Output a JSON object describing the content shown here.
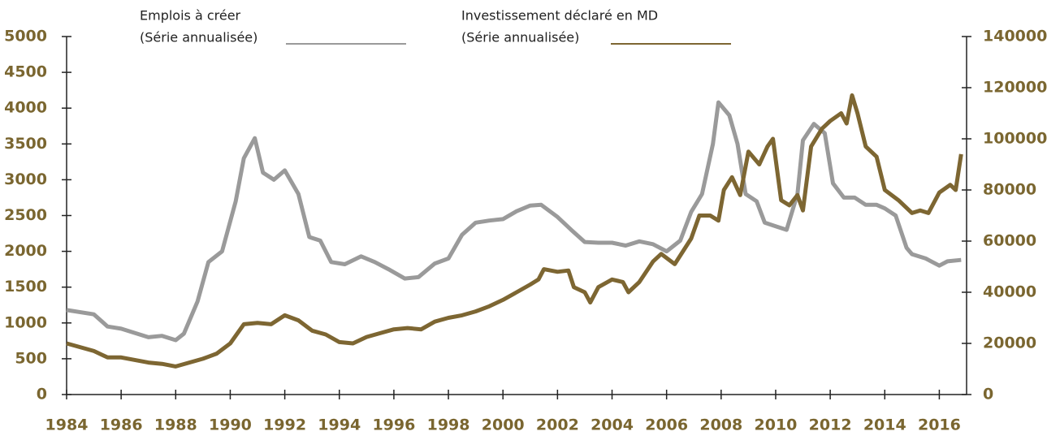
{
  "chart_data": {
    "type": "line",
    "xlim": [
      1984,
      2017
    ],
    "xticks": [
      1984,
      1986,
      1988,
      1990,
      1992,
      1994,
      1996,
      1998,
      2000,
      2002,
      2004,
      2006,
      2008,
      2010,
      2012,
      2014,
      2016
    ],
    "ylim": [
      0,
      5000
    ],
    "yticks": [
      0,
      500,
      1000,
      1500,
      2000,
      2500,
      3000,
      3500,
      4000,
      4500,
      5000
    ],
    "y2lim": [
      0,
      140000
    ],
    "y2ticks": [
      0,
      20000,
      40000,
      60000,
      80000,
      100000,
      120000,
      140000
    ],
    "series": [
      {
        "name": [
          "Emplois à créer",
          "(Série annualisée)"
        ],
        "color": "#9a9a9a",
        "axis": "y",
        "x": [
          1984.0,
          1985,
          1985.5,
          1986,
          1986.5,
          1987,
          1987.5,
          1988,
          1988.3,
          1988.8,
          1989.2,
          1989.7,
          1990.2,
          1990.5,
          1990.9,
          1991.2,
          1991.6,
          1992.0,
          1992.5,
          1992.9,
          1993.3,
          1993.7,
          1994.2,
          1994.8,
          1995.3,
          1995.8,
          1996.4,
          1996.9,
          1997.5,
          1998.0,
          1998.5,
          1999.0,
          1999.5,
          2000.0,
          2000.5,
          2001.0,
          2001.4,
          2002.0,
          2002.5,
          2003.0,
          2003.5,
          2004.0,
          2004.5,
          2005.0,
          2005.5,
          2006.0,
          2006.5,
          2006.9,
          2007.3,
          2007.7,
          2007.9,
          2008.3,
          2008.6,
          2008.9,
          2009.3,
          2009.6,
          2010.0,
          2010.4,
          2010.8,
          2011.0,
          2011.4,
          2011.8,
          2012.1,
          2012.5,
          2012.9,
          2013.3,
          2013.7,
          2014.0,
          2014.4,
          2014.8,
          2015.0,
          2015.5,
          2016.0,
          2016.3,
          2016.8
        ],
        "values": [
          1180,
          1120,
          950,
          920,
          860,
          800,
          820,
          760,
          850,
          1300,
          1850,
          2000,
          2700,
          3300,
          3580,
          3100,
          3000,
          3130,
          2800,
          2200,
          2150,
          1850,
          1820,
          1930,
          1850,
          1750,
          1620,
          1640,
          1830,
          1900,
          2230,
          2400,
          2430,
          2450,
          2560,
          2640,
          2650,
          2480,
          2300,
          2130,
          2120,
          2120,
          2080,
          2140,
          2100,
          2000,
          2150,
          2550,
          2800,
          3500,
          4080,
          3900,
          3500,
          2800,
          2700,
          2400,
          2350,
          2300,
          2800,
          3550,
          3780,
          3650,
          2950,
          2750,
          2750,
          2650,
          2650,
          2600,
          2500,
          2050,
          1960,
          1900,
          1800,
          1860,
          1880
        ]
      },
      {
        "name": [
          "Investissement déclaré en MD",
          "(Série annualisée)"
        ],
        "color": "#7d6632",
        "axis": "y2",
        "x": [
          1984,
          1985,
          1985.5,
          1986,
          1987,
          1987.5,
          1988,
          1988.5,
          1989,
          1989.5,
          1990,
          1990.5,
          1991,
          1991.5,
          1992,
          1992.5,
          1993,
          1993.5,
          1994,
          1994.5,
          1995,
          1995.5,
          1996,
          1996.5,
          1997,
          1997.5,
          1998,
          1998.5,
          1999,
          1999.5,
          2000,
          2000.5,
          2001,
          2001.3,
          2001.5,
          2002,
          2002.4,
          2002.6,
          2003,
          2003.2,
          2003.5,
          2004,
          2004.4,
          2004.6,
          2005,
          2005.5,
          2005.8,
          2006.3,
          2006.6,
          2006.9,
          2007.2,
          2007.6,
          2007.9,
          2008.1,
          2008.4,
          2008.7,
          2009,
          2009.4,
          2009.7,
          2009.9,
          2010.2,
          2010.5,
          2010.8,
          2011,
          2011.3,
          2011.7,
          2012,
          2012.4,
          2012.6,
          2012.8,
          2013.0,
          2013.3,
          2013.7,
          2014.0,
          2014.5,
          2015,
          2015.3,
          2015.6,
          2016,
          2016.4,
          2016.6,
          2016.8
        ],
        "values": [
          20000,
          17000,
          14500,
          14500,
          12500,
          12000,
          11000,
          12500,
          14000,
          16000,
          20000,
          27500,
          28000,
          27500,
          31000,
          29000,
          25000,
          23500,
          20500,
          20000,
          22500,
          24000,
          25500,
          26000,
          25500,
          28500,
          30000,
          31000,
          32500,
          34500,
          37000,
          40000,
          43000,
          45000,
          49000,
          48000,
          48500,
          42000,
          40000,
          36000,
          42000,
          45000,
          44000,
          40000,
          44000,
          52000,
          55000,
          51000,
          56000,
          61000,
          70000,
          70000,
          68000,
          80000,
          85000,
          78000,
          95000,
          90000,
          97000,
          100000,
          76000,
          74000,
          78000,
          72000,
          97000,
          104000,
          107000,
          110000,
          106000,
          117000,
          110000,
          97000,
          93000,
          80000,
          76000,
          71000,
          72000,
          71000,
          79000,
          82000,
          80000,
          94000
        ]
      }
    ]
  }
}
